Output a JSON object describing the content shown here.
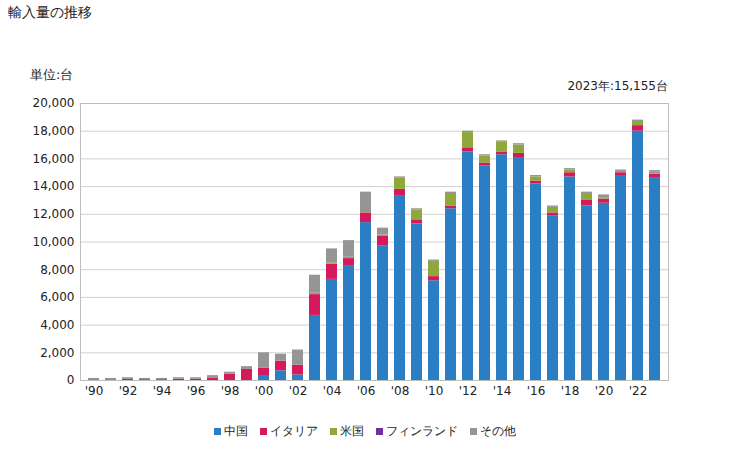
{
  "chart_data": {
    "type": "bar",
    "title": "輸入量の推移",
    "y_label": "単位:台",
    "annotations": [
      "2023年:15,155台"
    ],
    "stacked": true,
    "grid": true,
    "categories": [
      "'90",
      null,
      "'92",
      null,
      "'94",
      null,
      "'96",
      null,
      "'98",
      null,
      "'00",
      null,
      "'02",
      null,
      "'04",
      null,
      "'06",
      null,
      "'08",
      null,
      "'10",
      null,
      "'12",
      null,
      "'14",
      null,
      "'16",
      null,
      "'18",
      null,
      "'20",
      null,
      "'22",
      null
    ],
    "series": [
      {
        "name": "中国",
        "color": "#2a7fc4",
        "values": [
          0,
          0,
          0,
          0,
          0,
          0,
          0,
          0,
          0,
          0,
          300,
          700,
          400,
          4700,
          7300,
          8300,
          11400,
          9700,
          13300,
          11300,
          7200,
          12400,
          16500,
          15500,
          16300,
          16100,
          14200,
          11900,
          14700,
          12600,
          12800,
          14800,
          18000,
          14600
        ]
      },
      {
        "name": "イタリア",
        "color": "#d6185c",
        "values": [
          50,
          50,
          80,
          60,
          60,
          100,
          100,
          150,
          450,
          800,
          600,
          700,
          700,
          1500,
          1100,
          500,
          700,
          700,
          500,
          300,
          300,
          200,
          300,
          200,
          200,
          300,
          200,
          200,
          300,
          400,
          300,
          200,
          400,
          300
        ]
      },
      {
        "name": "米国",
        "color": "#8ea83c",
        "values": [
          0,
          0,
          0,
          0,
          0,
          0,
          0,
          0,
          0,
          0,
          0,
          0,
          0,
          100,
          100,
          100,
          100,
          100,
          800,
          700,
          1100,
          900,
          1100,
          500,
          700,
          600,
          300,
          400,
          200,
          500,
          100,
          100,
          300,
          100
        ]
      },
      {
        "name": "フィンランド",
        "color": "#7030a0",
        "values": [
          0,
          0,
          0,
          0,
          0,
          0,
          0,
          0,
          0,
          0,
          0,
          0,
          0,
          0,
          0,
          0,
          0,
          0,
          0,
          0,
          0,
          0,
          0,
          0,
          0,
          0,
          0,
          0,
          0,
          0,
          0,
          0,
          0,
          50
        ]
      },
      {
        "name": "その他",
        "color": "#959595",
        "values": [
          100,
          100,
          120,
          90,
          90,
          100,
          100,
          200,
          150,
          200,
          1100,
          500,
          1100,
          1300,
          1000,
          1200,
          1400,
          500,
          100,
          100,
          100,
          100,
          100,
          100,
          100,
          100,
          100,
          100,
          100,
          100,
          200,
          100,
          100,
          105
        ]
      }
    ],
    "ylim": [
      0,
      20000
    ],
    "yticks": [
      0,
      {
        "value": 2000,
        "label": "2,000"
      },
      {
        "value": 4000,
        "label": "4,000"
      },
      {
        "value": 6000,
        "label": "6,000"
      },
      {
        "value": 8000,
        "label": "8,000"
      },
      {
        "value": 10000,
        "label": "10,000"
      },
      {
        "value": 12000,
        "label": "12,000"
      },
      {
        "value": 14000,
        "label": "14,000"
      },
      {
        "value": 16000,
        "label": "16,000"
      },
      {
        "value": 18000,
        "label": "18,000"
      },
      {
        "value": 20000,
        "label": "20,000"
      }
    ],
    "legend": "bottom"
  }
}
